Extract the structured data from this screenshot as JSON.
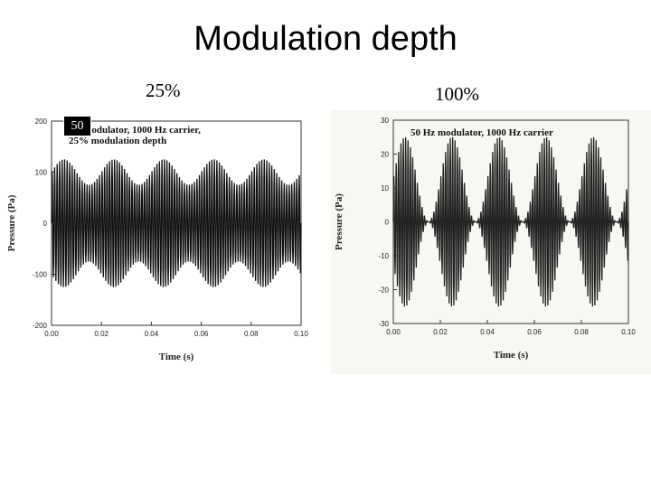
{
  "slide": {
    "title": "Modulation depth",
    "left_label": "25%",
    "right_label": "100%",
    "overlay_badge": "50"
  },
  "chart_data": [
    {
      "type": "line",
      "series": [
        {
          "carrier_hz": 1000,
          "modulator_hz": 50,
          "modulation_depth": 0.25,
          "amplitude": 100
        }
      ],
      "xlim": [
        0.0,
        0.1
      ],
      "ylim": [
        -200,
        200
      ],
      "xticks": [
        "0.00",
        "0.02",
        "0.04",
        "0.06",
        "0.08",
        "0.10"
      ],
      "yticks": [
        "200",
        "100",
        "0",
        "-100",
        "-200"
      ],
      "xlabel": "Time  (s)",
      "ylabel": "Pressure  (Pa)",
      "annotation": [
        "Hz  modulator,  1000  Hz  carrier,",
        "25%  modulation  depth"
      ],
      "color": "#111111"
    },
    {
      "type": "line",
      "series": [
        {
          "carrier_hz": 1000,
          "modulator_hz": 50,
          "modulation_depth": 1.0,
          "amplitude": 12.5
        }
      ],
      "xlim": [
        0.0,
        0.1
      ],
      "ylim": [
        -30,
        30
      ],
      "xticks": [
        "0.00",
        "0.02",
        "0.04",
        "0.06",
        "0.08",
        "0.10"
      ],
      "yticks": [
        "30",
        "20",
        "10",
        "0",
        "-10",
        "-20",
        "-30"
      ],
      "xlabel": "Time  (s)",
      "ylabel": "Pressure  (Pa)",
      "annotation": [
        "50  Hz  modulator,  1000  Hz  carrier"
      ],
      "color": "#222222"
    }
  ]
}
